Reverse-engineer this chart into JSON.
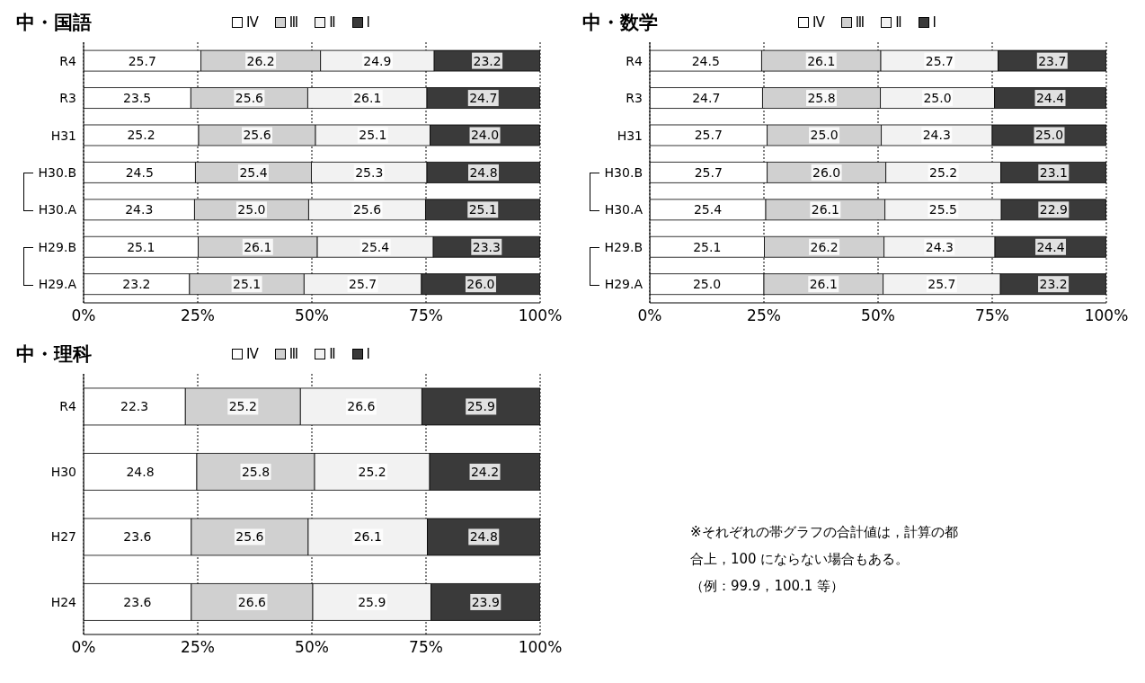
{
  "chart_data": [
    {
      "type": "bar",
      "orientation": "horizontal",
      "stacked": true,
      "title": "中・国語",
      "categories": [
        "R4",
        "R3",
        "H31",
        "H30.B",
        "H30.A",
        "H29.B",
        "H29.A"
      ],
      "xlim": [
        0,
        100
      ],
      "xticks": [
        {
          "value": 0,
          "label": "0%"
        },
        {
          "value": 25,
          "label": "25%"
        },
        {
          "value": 50,
          "label": "50%"
        },
        {
          "value": 75,
          "label": "75%"
        },
        {
          "value": 100,
          "label": "100%"
        }
      ],
      "grid": "x",
      "legend": "top",
      "series": [
        {
          "name": "Ⅳ",
          "color": "#ffffff",
          "values": [
            25.7,
            23.5,
            25.2,
            24.5,
            24.3,
            25.1,
            23.2
          ],
          "value_labels": [
            "25.7",
            "23.5",
            "25.2",
            "24.5",
            "24.3",
            "25.1",
            "23.2"
          ]
        },
        {
          "name": "Ⅲ",
          "color": "#d0d0d0",
          "values": [
            26.2,
            25.6,
            25.6,
            25.4,
            25.0,
            26.1,
            25.1
          ],
          "value_labels": [
            "26.2",
            "25.6",
            "25.6",
            "25.4",
            "25.0",
            "26.1",
            "25.1"
          ]
        },
        {
          "name": "Ⅱ",
          "color": "#f2f2f2",
          "values": [
            24.9,
            26.1,
            25.1,
            25.3,
            25.6,
            25.4,
            25.7
          ],
          "value_labels": [
            "24.9",
            "26.1",
            "25.1",
            "25.3",
            "25.6",
            "25.4",
            "25.7"
          ]
        },
        {
          "name": "Ⅰ",
          "color": "#3a3a3a",
          "values": [
            23.2,
            24.7,
            24.0,
            24.8,
            25.1,
            23.3,
            26.0
          ],
          "value_labels": [
            "23.2",
            "24.7",
            "24.0",
            "24.8",
            "25.1",
            "23.3",
            "26.0"
          ]
        }
      ]
    },
    {
      "type": "bar",
      "orientation": "horizontal",
      "stacked": true,
      "title": "中・数学",
      "categories": [
        "R4",
        "R3",
        "H31",
        "H30.B",
        "H30.A",
        "H29.B",
        "H29.A"
      ],
      "xlim": [
        0,
        100
      ],
      "xticks": [
        {
          "value": 0,
          "label": "0%"
        },
        {
          "value": 25,
          "label": "25%"
        },
        {
          "value": 50,
          "label": "50%"
        },
        {
          "value": 75,
          "label": "75%"
        },
        {
          "value": 100,
          "label": "100%"
        }
      ],
      "grid": "x",
      "legend": "top",
      "series": [
        {
          "name": "Ⅳ",
          "color": "#ffffff",
          "values": [
            24.5,
            24.7,
            25.7,
            25.7,
            25.4,
            25.1,
            25.0
          ],
          "value_labels": [
            "24.5",
            "24.7",
            "25.7",
            "25.7",
            "25.4",
            "25.1",
            "25.0"
          ]
        },
        {
          "name": "Ⅲ",
          "color": "#d0d0d0",
          "values": [
            26.1,
            25.8,
            25.0,
            26.0,
            26.1,
            26.2,
            26.1
          ],
          "value_labels": [
            "26.1",
            "25.8",
            "25.0",
            "26.0",
            "26.1",
            "26.2",
            "26.1"
          ]
        },
        {
          "name": "Ⅱ",
          "color": "#f2f2f2",
          "values": [
            25.7,
            25.0,
            24.3,
            25.2,
            25.5,
            24.3,
            25.7
          ],
          "value_labels": [
            "25.7",
            "25.0",
            "24.3",
            "25.2",
            "25.5",
            "24.3",
            "25.7"
          ]
        },
        {
          "name": "Ⅰ",
          "color": "#3a3a3a",
          "values": [
            23.7,
            24.4,
            25.0,
            23.1,
            22.9,
            24.4,
            23.2
          ],
          "value_labels": [
            "23.7",
            "24.4",
            "25.0",
            "23.1",
            "22.9",
            "24.4",
            "23.2"
          ]
        }
      ]
    },
    {
      "type": "bar",
      "orientation": "horizontal",
      "stacked": true,
      "title": "中・理科",
      "categories": [
        "R4",
        "H30",
        "H27",
        "H24"
      ],
      "xlim": [
        0,
        100
      ],
      "xticks": [
        {
          "value": 0,
          "label": "0%"
        },
        {
          "value": 25,
          "label": "25%"
        },
        {
          "value": 50,
          "label": "50%"
        },
        {
          "value": 75,
          "label": "75%"
        },
        {
          "value": 100,
          "label": "100%"
        }
      ],
      "grid": "x",
      "legend": "top",
      "annotations": [
        "※それぞれの帯グラフの合計値は，計算の都合上，100 にならない場合もある。",
        "（例：99.9，100.1 等）"
      ],
      "series": [
        {
          "name": "Ⅳ",
          "color": "#ffffff",
          "values": [
            22.3,
            24.8,
            23.6,
            23.6
          ],
          "value_labels": [
            "22.3",
            "24.8",
            "23.6",
            "23.6"
          ]
        },
        {
          "name": "Ⅲ",
          "color": "#d0d0d0",
          "values": [
            25.2,
            25.8,
            25.6,
            26.6
          ],
          "value_labels": [
            "25.2",
            "25.8",
            "25.6",
            "26.6"
          ]
        },
        {
          "name": "Ⅱ",
          "color": "#f2f2f2",
          "values": [
            26.6,
            25.2,
            26.1,
            25.9
          ],
          "value_labels": [
            "26.6",
            "25.2",
            "26.1",
            "25.9"
          ]
        },
        {
          "name": "Ⅰ",
          "color": "#3a3a3a",
          "values": [
            25.9,
            24.2,
            24.8,
            23.9
          ],
          "value_labels": [
            "25.9",
            "24.2",
            "24.8",
            "23.9"
          ]
        }
      ]
    }
  ]
}
